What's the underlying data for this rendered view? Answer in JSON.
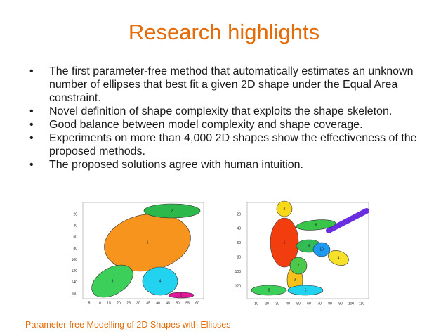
{
  "title": "Research highlights",
  "bullets": [
    "The first parameter-free method that automatically estimates an unknown number of ellipses that best fit a given 2D shape under the Equal Area constraint.",
    "Novel definition of shape complexity that exploits the shape skeleton.",
    "Good balance between model complexity and shape coverage.",
    "Experiments on more than 4,000 2D shapes show the effectiveness of the proposed methods.",
    "The proposed solutions agree with human intuition."
  ],
  "figures": [
    {
      "yticks": [
        20,
        40,
        60,
        80,
        100,
        120,
        140,
        160
      ],
      "xticks": [
        5,
        10,
        15,
        20,
        25,
        30,
        35,
        40,
        45,
        50,
        55,
        60
      ],
      "ellipse_labels": [
        1,
        2,
        3,
        4,
        5
      ]
    },
    {
      "yticks": [
        20,
        40,
        60,
        80,
        100,
        120
      ],
      "xticks": [
        10,
        20,
        30,
        40,
        50,
        60,
        70,
        80,
        90,
        100,
        110
      ],
      "ellipse_labels": [
        1,
        2,
        3,
        4,
        5,
        6,
        7,
        8,
        9,
        10
      ]
    }
  ],
  "footer": "Parameter-free Modelling of 2D Shapes with Ellipses"
}
